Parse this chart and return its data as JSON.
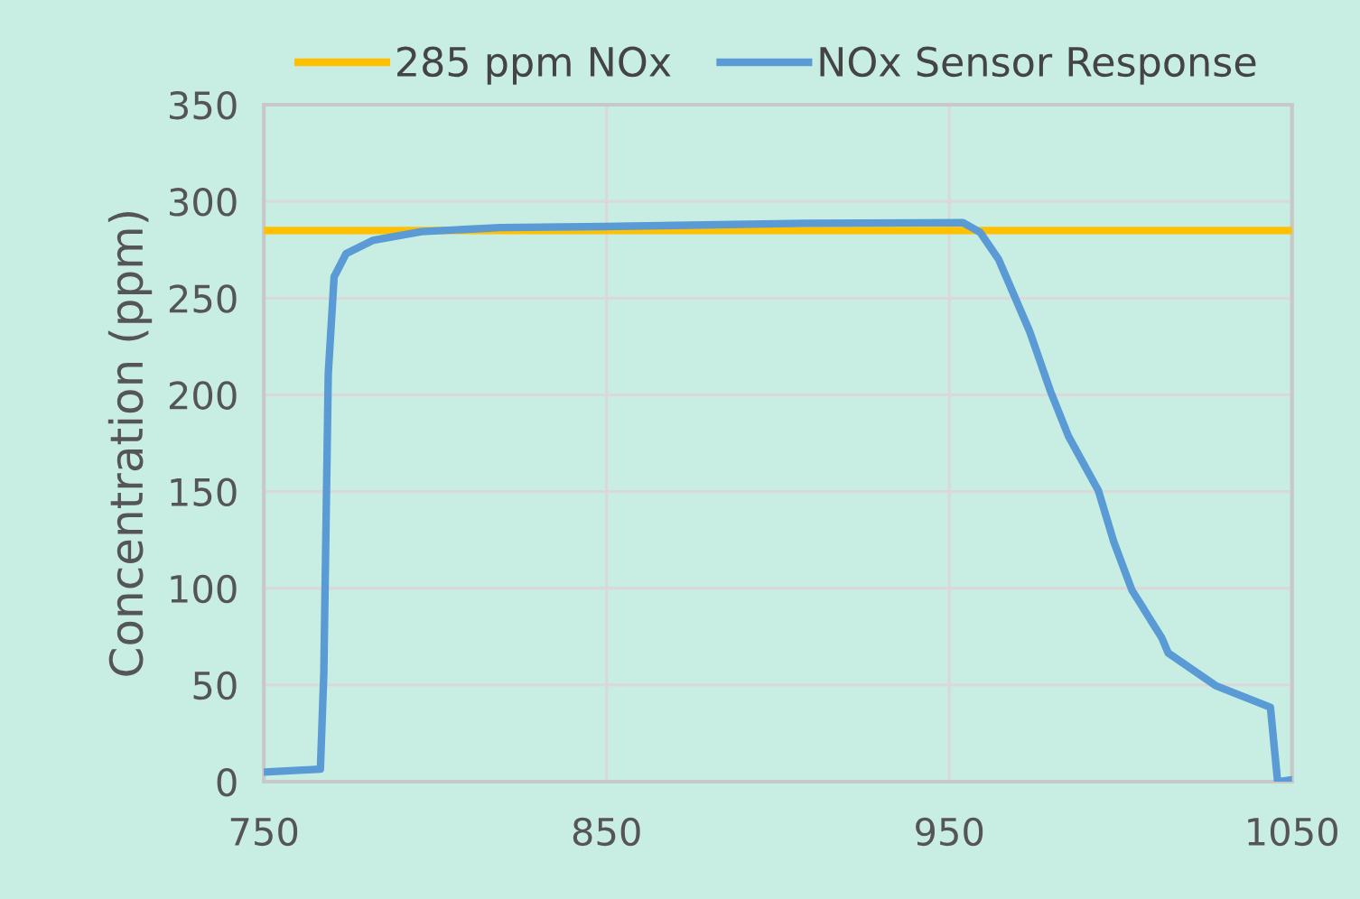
{
  "chart_data": {
    "type": "line",
    "ylabel": "Concentration (ppm)",
    "xlim": [
      750,
      1050
    ],
    "xticks": [
      750,
      850,
      950,
      1050
    ],
    "ylim": [
      0,
      350
    ],
    "yticks": [
      0,
      50,
      100,
      150,
      200,
      250,
      300,
      350
    ],
    "grid": true,
    "legend": "top",
    "line_style": "solid",
    "marker": "none",
    "series": [
      {
        "name": "285 ppm NOx",
        "color": "#ffc000",
        "x": [
          750,
          1050
        ],
        "values": [
          285,
          285
        ]
      },
      {
        "name": "NOx Sensor Response",
        "color": "#5b9bd5",
        "x": [
          750,
          766.5,
          767.5,
          768.8,
          770.5,
          774,
          782,
          796,
          819,
          849,
          908,
          954,
          959,
          964.4,
          973.4,
          979.5,
          984.8,
          993.5,
          998,
          1003.3,
          1012,
          1013.9,
          1027.9,
          1043.7,
          1045.8,
          1050
        ],
        "values": [
          5,
          6.5,
          56,
          211,
          261,
          273,
          280,
          284.4,
          286.5,
          287,
          288.7,
          289,
          284,
          270,
          233,
          202,
          178.5,
          150.5,
          124,
          99,
          74.4,
          66.5,
          49.5,
          38.5,
          0,
          1
        ]
      }
    ]
  }
}
